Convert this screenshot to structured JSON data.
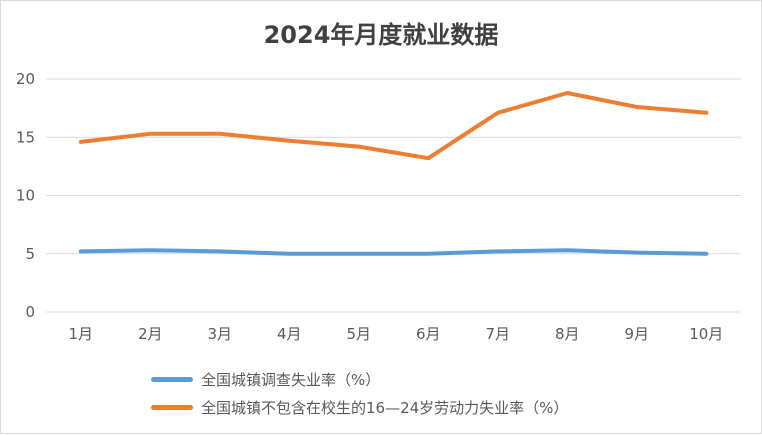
{
  "chart_data": {
    "type": "line",
    "title": "2024年月度就业数据",
    "xlabel": "",
    "ylabel": "",
    "categories": [
      "1月",
      "2月",
      "3月",
      "4月",
      "5月",
      "6月",
      "7月",
      "8月",
      "9月",
      "10月"
    ],
    "ylim": [
      0,
      20
    ],
    "yticks": [
      0,
      5,
      10,
      15,
      20
    ],
    "grid": true,
    "legend_position": "bottom",
    "series": [
      {
        "name": "全国城镇调查失业率（%）",
        "color": "#5b9bd5",
        "values": [
          5.2,
          5.3,
          5.2,
          5.0,
          5.0,
          5.0,
          5.2,
          5.3,
          5.1,
          5.0
        ]
      },
      {
        "name": "全国城镇不包含在校生的16—24岁劳动力失业率（%）",
        "color": "#ed7d31",
        "values": [
          14.6,
          15.3,
          15.3,
          14.7,
          14.2,
          13.2,
          17.1,
          18.8,
          17.6,
          17.1
        ]
      }
    ]
  }
}
